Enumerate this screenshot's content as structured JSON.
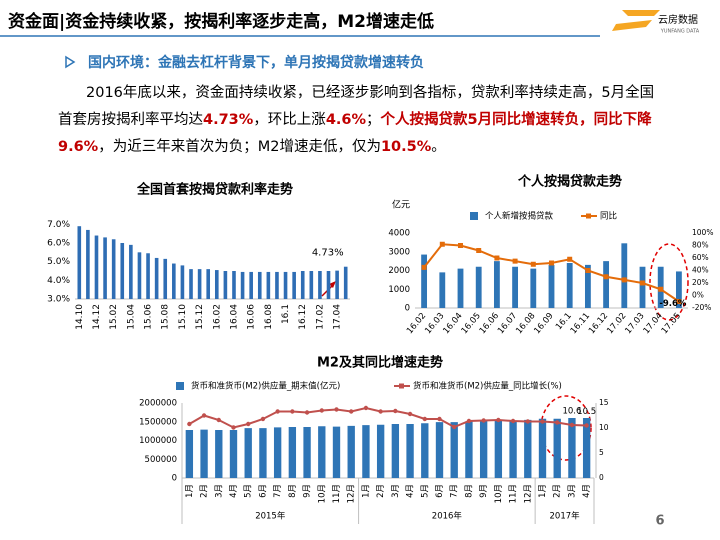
{
  "header": {
    "title": "资金面|资金持续收紧，按揭利率逐步走高，M2增速走低",
    "logo_text": "云房数据",
    "logo_sub": "YUNFANG DATA"
  },
  "bullet": "国内环境：金融去杠杆背景下，单月按揭贷款增速转负",
  "paragraph": [
    {
      "text": "2016年底以来，资金面持续收紧，已经逐步影响到各指标，贷款利率持续走高，5月全国首套房按揭利率平均达",
      "emph": false
    },
    {
      "text": "4.73%",
      "emph": true
    },
    {
      "text": "，环比上涨",
      "emph": false
    },
    {
      "text": "4.6%",
      "emph": true
    },
    {
      "text": "；",
      "emph": false
    },
    {
      "text": "个人按揭贷款5月同比增速转负，同比下降9.6%",
      "emph": true
    },
    {
      "text": "，为近三年来首次为负；M2增速走低，仅为",
      "emph": false
    },
    {
      "text": "10.5%",
      "emph": true
    },
    {
      "text": "。",
      "emph": false
    }
  ],
  "page_number": "6",
  "chart_data": [
    {
      "type": "bar",
      "title": "全国首套按揭贷款利率走势",
      "categories": [
        "14.10",
        null,
        "14.12",
        null,
        "15.02",
        null,
        "15.04",
        null,
        "15.06",
        null,
        "15.08",
        null,
        "15.10",
        null,
        "15.12",
        null,
        "16.02",
        null,
        "16.04",
        null,
        "16.06",
        null,
        "16.08",
        null,
        "16.1",
        null,
        "16.12",
        null,
        "17.02",
        null,
        "17.04",
        null
      ],
      "series": [
        {
          "name": null,
          "color": "#2e6db4",
          "type": "bar",
          "values": [
            6.9,
            6.7,
            6.4,
            6.3,
            6.2,
            6.0,
            5.9,
            5.5,
            5.45,
            5.2,
            5.15,
            4.9,
            4.8,
            4.6,
            4.6,
            4.6,
            4.55,
            4.5,
            4.5,
            4.45,
            4.45,
            4.45,
            4.45,
            4.45,
            4.45,
            4.45,
            4.5,
            4.5,
            4.5,
            4.5,
            4.52,
            4.73
          ],
          "value_labels": [
            null,
            null,
            null,
            null,
            null,
            null,
            null,
            null,
            null,
            null,
            null,
            null,
            null,
            null,
            null,
            null,
            null,
            null,
            null,
            null,
            null,
            null,
            null,
            null,
            null,
            null,
            null,
            null,
            null,
            null,
            null,
            "4.73%"
          ]
        }
      ],
      "ylim": [
        3,
        7.5
      ],
      "yticks": [
        {
          "value": 3,
          "label": "3.0%"
        },
        {
          "value": 4,
          "label": "4.0%"
        },
        {
          "value": 5,
          "label": "5.0%"
        },
        {
          "value": 6,
          "label": "6.0%"
        },
        {
          "value": 7,
          "label": "7.0%"
        }
      ],
      "grid": false
    },
    {
      "type": "bar_line",
      "title": "个人按揭贷款走势",
      "ylabel": "亿元",
      "categories": [
        "16.02",
        "16.03",
        "16.04",
        "16.05",
        "16.06",
        "16.07",
        "16.08",
        "16.09",
        "16.1",
        "16.11",
        "16.12",
        "17.02",
        "17.03",
        "17.04",
        "17.05"
      ],
      "series": [
        {
          "name": "个人新增按揭贷款",
          "color": "#2e75b6",
          "type": "bar",
          "values": [
            2850,
            1900,
            2100,
            2200,
            2500,
            2200,
            2100,
            2300,
            2400,
            2300,
            2500,
            3450,
            2200,
            2200,
            1950
          ]
        },
        {
          "name": "同比",
          "color": "#e46c0a",
          "type": "line",
          "axis": "y2",
          "values": [
            45,
            82,
            80,
            72,
            60,
            55,
            50,
            52,
            58,
            40,
            30,
            25,
            20,
            10,
            -9.6
          ],
          "value_labels": [
            null,
            null,
            null,
            null,
            null,
            null,
            null,
            null,
            null,
            null,
            null,
            null,
            null,
            null,
            "-9.6%"
          ]
        }
      ],
      "ylim": [
        0,
        4000
      ],
      "yticks": [
        0,
        1000,
        2000,
        3000,
        4000
      ],
      "y2lim": [
        -20,
        100
      ],
      "y2ticks": [
        {
          "value": -20,
          "label": "-20%"
        },
        {
          "value": 0,
          "label": "0%"
        },
        {
          "value": 20,
          "label": "20%"
        },
        {
          "value": 40,
          "label": "40%"
        },
        {
          "value": 60,
          "label": "60%"
        },
        {
          "value": 80,
          "label": "80%"
        },
        {
          "value": 100,
          "label": "100%"
        }
      ],
      "legend": "top",
      "grid": false
    },
    {
      "type": "bar_line",
      "title": "M2及其同比增速走势",
      "categories": [
        "1月",
        "2月",
        "3月",
        "4月",
        "5月",
        "6月",
        "7月",
        "8月",
        "9月",
        "10月",
        "11月",
        "12月",
        "1月",
        "2月",
        "3月",
        "4月",
        "5月",
        "6月",
        "7月",
        "8月",
        "9月",
        "10月",
        "11月",
        "12月",
        "1月",
        "2月",
        "3月",
        "4月"
      ],
      "x_groups": [
        "2015年",
        "2016年",
        "2017年"
      ],
      "x_group_sizes": [
        12,
        12,
        4
      ],
      "series": [
        {
          "name": "货币和准货币(M2)供应量_期末值(亿元)",
          "color": "#2e75b6",
          "type": "bar",
          "values": [
            1280000,
            1290000,
            1280000,
            1280000,
            1330000,
            1330000,
            1350000,
            1360000,
            1360000,
            1380000,
            1370000,
            1390000,
            1410000,
            1420000,
            1440000,
            1440000,
            1460000,
            1490000,
            1490000,
            1510000,
            1520000,
            1520000,
            1530000,
            1550000,
            1580000,
            1580000,
            1600000,
            1600000
          ]
        },
        {
          "name": "货币和准货币(M2)供应量_同比增长(%)",
          "color": "#c0504d",
          "type": "line",
          "axis": "y2",
          "values": [
            10.8,
            12.5,
            11.6,
            10.1,
            10.8,
            11.8,
            13.3,
            13.3,
            13.1,
            13.5,
            13.7,
            13.3,
            14.0,
            13.3,
            13.4,
            12.8,
            11.8,
            11.8,
            10.2,
            11.4,
            11.5,
            11.6,
            11.4,
            11.3,
            11.3,
            11.1,
            10.6,
            10.5
          ],
          "value_labels": [
            null,
            null,
            null,
            null,
            null,
            null,
            null,
            null,
            null,
            null,
            null,
            null,
            null,
            null,
            null,
            null,
            null,
            null,
            null,
            null,
            null,
            null,
            null,
            null,
            null,
            null,
            "10.6",
            "10.5"
          ]
        }
      ],
      "ylim": [
        0,
        2000000
      ],
      "yticks": [
        0,
        500000,
        1000000,
        1500000,
        2000000
      ],
      "y2lim": [
        0,
        15
      ],
      "y2ticks": [
        0,
        5,
        10,
        15
      ],
      "legend": "top",
      "grid": false
    }
  ]
}
